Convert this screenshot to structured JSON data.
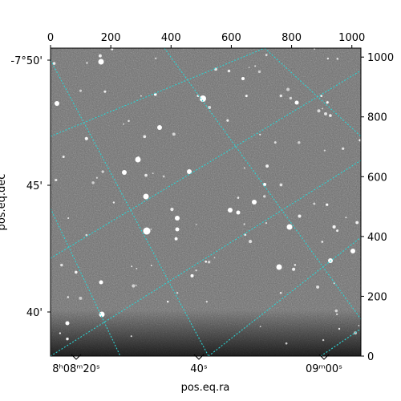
{
  "figure": {
    "xlabel_bottom": "pos.eq.ra",
    "ylabel_left": "pos.eq.dec"
  },
  "pixel_axes": {
    "top_ticks": [
      "0",
      "200",
      "400",
      "600",
      "800",
      "1000"
    ],
    "top_tick_values": [
      0,
      200,
      400,
      600,
      800,
      1000
    ],
    "right_ticks": [
      "0",
      "200",
      "400",
      "600",
      "800",
      "1000"
    ],
    "right_tick_values": [
      0,
      200,
      400,
      600,
      800,
      1000
    ],
    "range": [
      0,
      1030
    ]
  },
  "world_axes": {
    "ra_ticks": [
      {
        "label_main": "8ʰ08ᵐ20ˢ",
        "value": "8h08m20s"
      },
      {
        "label_main": "40ˢ",
        "value": "8h08m40s"
      },
      {
        "label_main": "09ᵐ00ˢ",
        "value": "8h09m00s"
      }
    ],
    "dec_ticks": [
      {
        "label": "-7°50'",
        "value": "-7°50'"
      },
      {
        "label": "45'",
        "value": "-7°45'"
      },
      {
        "label": "40'",
        "value": "-7°40'"
      }
    ]
  },
  "grid": {
    "on": true,
    "color": "#2bd4d4",
    "style": "dotted"
  },
  "image": {
    "colormap": "gray",
    "background_color": "#6e6e6e",
    "content": "star field"
  }
}
